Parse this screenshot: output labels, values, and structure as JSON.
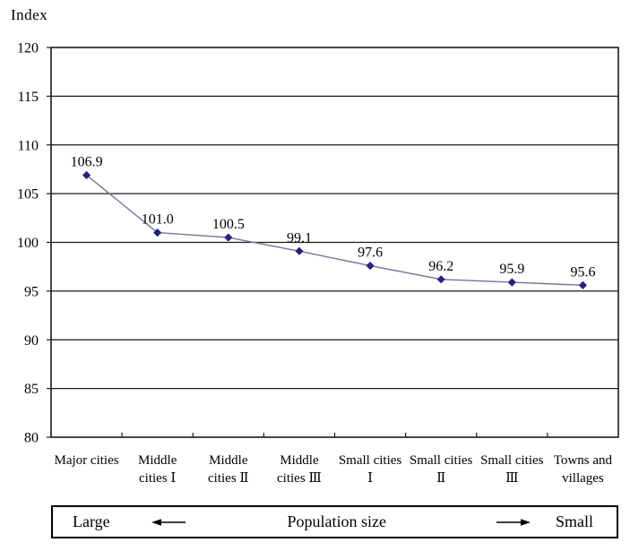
{
  "chart_data": {
    "type": "line",
    "title": "",
    "ylabel": "Index",
    "xlabel": "",
    "categories": [
      "Major cities",
      "Middle cities Ⅰ",
      "Middle cities Ⅱ",
      "Middle cities Ⅲ",
      "Small cities Ⅰ",
      "Small cities Ⅱ",
      "Small cities Ⅲ",
      "Towns and villages"
    ],
    "category_label_lines": [
      [
        "Major cities"
      ],
      [
        "Middle",
        "cities Ⅰ"
      ],
      [
        "Middle",
        "cities Ⅱ"
      ],
      [
        "Middle",
        "cities Ⅲ"
      ],
      [
        "Small cities",
        "Ⅰ"
      ],
      [
        "Small cities",
        "Ⅱ"
      ],
      [
        "Small cities",
        "Ⅲ"
      ],
      [
        "Towns and",
        "villages"
      ]
    ],
    "series": [
      {
        "name": "Index",
        "values": [
          106.9,
          101.0,
          100.5,
          99.1,
          97.6,
          96.2,
          95.9,
          95.6
        ],
        "value_labels": [
          "106.9",
          "101.0",
          "100.5",
          "99.1",
          "97.6",
          "96.2",
          "95.9",
          "95.6"
        ]
      }
    ],
    "ylim": [
      80,
      120
    ],
    "ytick_step": 5,
    "yticks": [
      80,
      85,
      90,
      95,
      100,
      105,
      110,
      115,
      120
    ],
    "grid": "horizontal-only",
    "legend_position": "none",
    "marker": "diamond",
    "colors": {
      "line": "#75759b",
      "marker": "#24247c",
      "axis": "#1a1a1a",
      "text": "#000000",
      "background": "#ffffff"
    }
  },
  "footer": {
    "left_label": "Large",
    "center_label": "Population size",
    "right_label": "Small"
  }
}
